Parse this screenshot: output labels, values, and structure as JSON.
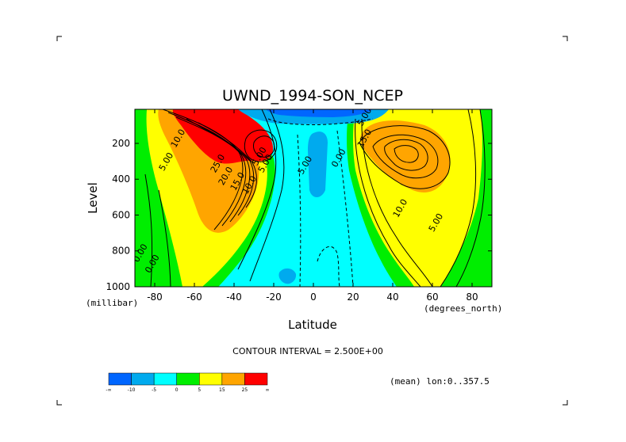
{
  "chart_data": {
    "type": "contour",
    "title": "UWND_1994-SON_NCEP",
    "xlabel": "Latitude",
    "ylabel": "Level",
    "x_unit_label": "(degrees_north)",
    "y_unit_label": "(millibar)",
    "xlim": [
      -90,
      90
    ],
    "ylim": [
      1000,
      10
    ],
    "x_ticks": [
      -80,
      -60,
      -40,
      -20,
      0,
      20,
      40,
      60,
      80
    ],
    "y_ticks": [
      200,
      400,
      600,
      800,
      1000
    ],
    "contour_interval_text": "CONTOUR INTERVAL = 2.500E+00",
    "footer_text": "(mean) lon:0..357.5",
    "contour_labels": [
      {
        "text": "10.0",
        "lat": -67,
        "level": 180
      },
      {
        "text": "5.00",
        "lat": -73,
        "level": 310
      },
      {
        "text": "25.0",
        "lat": -47,
        "level": 320
      },
      {
        "text": "20.0",
        "lat": -43,
        "level": 390
      },
      {
        "text": "15.0",
        "lat": -37,
        "level": 420
      },
      {
        "text": "10.0",
        "lat": -31,
        "level": 440
      },
      {
        "text": "5.00",
        "lat": -23,
        "level": 320
      },
      {
        "text": "5.00",
        "lat": -26,
        "level": 280
      },
      {
        "text": "5.00",
        "lat": -3,
        "level": 330
      },
      {
        "text": "0.00",
        "lat": 14,
        "level": 290
      },
      {
        "text": "5.00",
        "lat": 27,
        "level": 60
      },
      {
        "text": "15.0",
        "lat": 27,
        "level": 180
      },
      {
        "text": "10.0",
        "lat": 45,
        "level": 570
      },
      {
        "text": "5.00",
        "lat": 63,
        "level": 650
      },
      {
        "text": "0.00",
        "lat": -86,
        "level": 820
      },
      {
        "text": "0.00",
        "lat": -80,
        "level": 880
      }
    ],
    "colorbar": {
      "colors": [
        "#0066ff",
        "#00aaee",
        "#00ffff",
        "#00ee00",
        "#ffff00",
        "#ffa500",
        "#ff0000"
      ],
      "labels": [
        "-∞",
        "-10",
        "-5",
        "0",
        "5",
        "15",
        "25",
        "∞"
      ]
    }
  }
}
